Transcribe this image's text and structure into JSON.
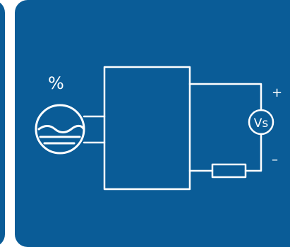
{
  "labels": {
    "percent": "%",
    "meter": "Vs",
    "plus": "+",
    "minus": "–"
  },
  "colors": {
    "panel_background": "#0a5c97",
    "line": "#ffffff",
    "page_background": "#ffffff"
  },
  "icons": {
    "sensor": "liquid-level-sensor-icon",
    "meter": "voltmeter-icon",
    "resistor": "resistor-icon"
  }
}
